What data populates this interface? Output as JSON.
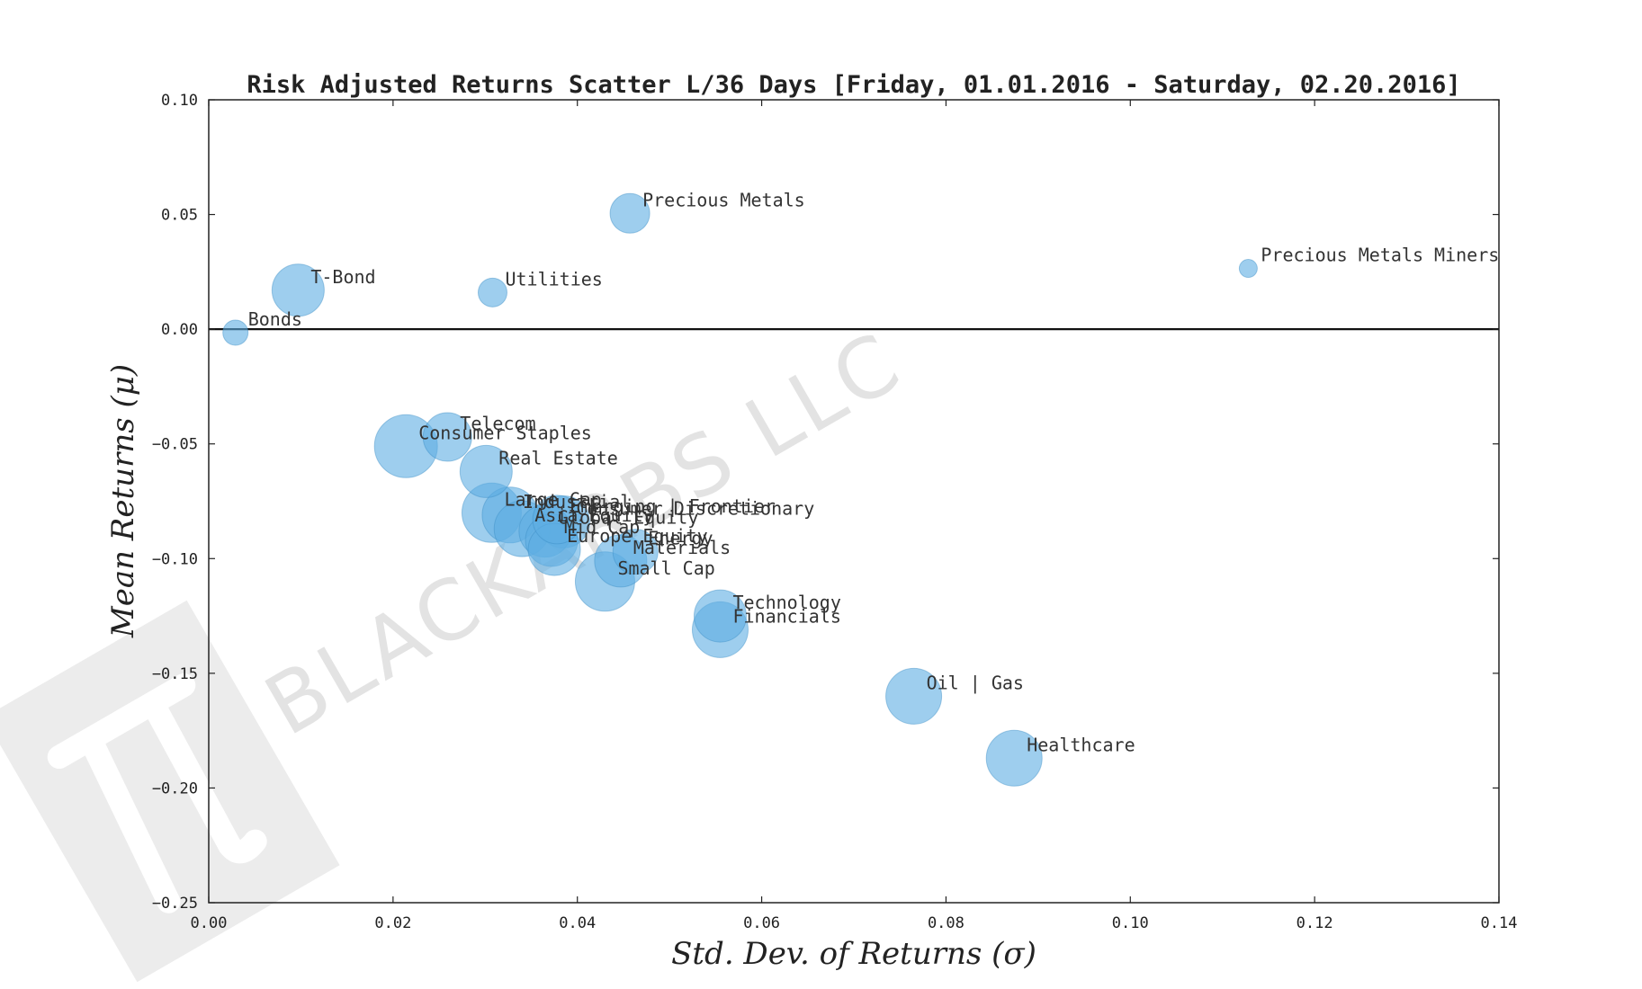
{
  "chart_data": {
    "type": "scatter",
    "title": "Risk Adjusted Returns Scatter L/36 Days [Friday, 01.01.2016 - Saturday, 02.20.2016]",
    "xlabel": "Std. Dev. of Returns (σ)",
    "ylabel": "Mean Returns (μ)",
    "xlim": [
      0.0,
      0.14
    ],
    "ylim": [
      -0.25,
      0.1
    ],
    "xticks": [
      "0.00",
      "0.02",
      "0.04",
      "0.06",
      "0.08",
      "0.10",
      "0.12",
      "0.14"
    ],
    "yticks": [
      "0.10",
      "0.05",
      "0.00",
      "−0.05",
      "−0.10",
      "−0.15",
      "−0.20",
      "−0.25"
    ],
    "zero_line": 0.0,
    "watermark": "BLACKARBS LLC",
    "points": [
      {
        "label": "Precious Metals",
        "x": 0.0457,
        "y": 0.0505,
        "size": 22
      },
      {
        "label": "Precious Metals Miners",
        "x": 0.1128,
        "y": 0.0265,
        "size": 10
      },
      {
        "label": "T-Bond",
        "x": 0.0097,
        "y": 0.017,
        "size": 29
      },
      {
        "label": "Utilities",
        "x": 0.0308,
        "y": 0.016,
        "size": 16
      },
      {
        "label": "Bonds",
        "x": 0.0029,
        "y": -0.0015,
        "size": 14
      },
      {
        "label": "Consumer Staples",
        "x": 0.0214,
        "y": -0.051,
        "size": 35
      },
      {
        "label": "Telecom",
        "x": 0.0259,
        "y": -0.047,
        "size": 27
      },
      {
        "label": "Real Estate",
        "x": 0.0301,
        "y": -0.062,
        "size": 29
      },
      {
        "label": "Large Cap",
        "x": 0.0307,
        "y": -0.08,
        "size": 33
      },
      {
        "label": "Industrial",
        "x": 0.0327,
        "y": -0.081,
        "size": 31
      },
      {
        "label": "Asia Equity",
        "x": 0.034,
        "y": -0.087,
        "size": 31
      },
      {
        "label": "Emerging | Frontier",
        "x": 0.0378,
        "y": -0.083,
        "size": 27
      },
      {
        "label": "Consumer Discretionary",
        "x": 0.0385,
        "y": -0.084,
        "size": 29
      },
      {
        "label": "Global Equity",
        "x": 0.0365,
        "y": -0.088,
        "size": 29
      },
      {
        "label": "Mid Cap",
        "x": 0.0372,
        "y": -0.092,
        "size": 29
      },
      {
        "label": "Europe Equity",
        "x": 0.0375,
        "y": -0.096,
        "size": 29
      },
      {
        "label": "Energy",
        "x": 0.0463,
        "y": -0.097,
        "size": 25
      },
      {
        "label": "Materials",
        "x": 0.0447,
        "y": -0.101,
        "size": 29
      },
      {
        "label": "Small Cap",
        "x": 0.043,
        "y": -0.11,
        "size": 33
      },
      {
        "label": "Technology",
        "x": 0.0555,
        "y": -0.125,
        "size": 29
      },
      {
        "label": "Financials",
        "x": 0.0555,
        "y": -0.131,
        "size": 31
      },
      {
        "label": "Oil | Gas",
        "x": 0.0765,
        "y": -0.16,
        "size": 31
      },
      {
        "label": "Healthcare",
        "x": 0.0874,
        "y": -0.187,
        "size": 31
      }
    ]
  }
}
